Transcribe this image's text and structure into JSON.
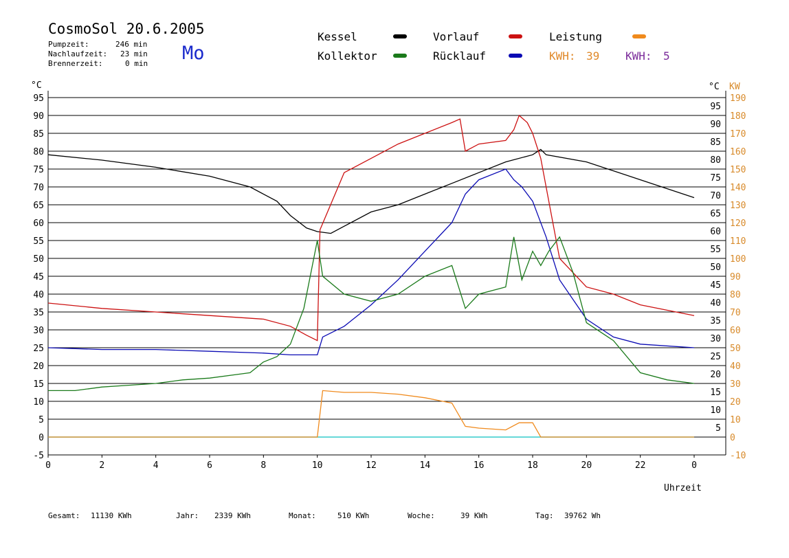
{
  "header": {
    "title": "CosmoSol 20.6.2005",
    "day": "Mo",
    "stats": [
      {
        "label": "Pumpzeit:",
        "value": "246 min"
      },
      {
        "label": "Nachlaufzeit:",
        "value": "23 min"
      },
      {
        "label": "Brennerzeit:",
        "value": "0 min"
      }
    ]
  },
  "legend": {
    "kessel": "Kessel",
    "kollektor": "Kollektor",
    "vorlauf": "Vorlauf",
    "ruecklauf": "Rücklauf",
    "leistung": "Leistung",
    "kwh_a_label": "KWH:",
    "kwh_a_value": "39",
    "kwh_b_label": "KWH:",
    "kwh_b_value": "5"
  },
  "colors": {
    "kessel": "#000000",
    "kollektor": "#1a7a1a",
    "vorlauf": "#cc1111",
    "ruecklauf": "#0a0ab4",
    "leistung": "#f08a1c",
    "kwh_b": "#7a2a9a",
    "baseline": "#33cccc",
    "right_axis": "#d88a2a",
    "day": "#1a2acc"
  },
  "footer": {
    "gesamt_label": "Gesamt:",
    "gesamt_value": "11130 KWh",
    "jahr_label": "Jahr:",
    "jahr_value": "2339 KWh",
    "monat_label": "Monat:",
    "monat_value": "510 KWh",
    "woche_label": "Woche:",
    "woche_value": "39 KWh",
    "tag_label": "Tag:",
    "tag_value": "39762 Wh"
  },
  "chart_data": {
    "type": "line",
    "xlabel": "Uhrzeit",
    "left_unit": "°C",
    "right_units": [
      "°C",
      "KW"
    ],
    "xlim": [
      0,
      24
    ],
    "ylim_left": [
      -5,
      95
    ],
    "ylim_right_kw": [
      -10,
      190
    ],
    "x_ticks": [
      "0",
      "2",
      "4",
      "6",
      "8",
      "10",
      "12",
      "14",
      "16",
      "18",
      "20",
      "22",
      "0"
    ],
    "y_ticks_left": [
      "95",
      "90",
      "85",
      "80",
      "75",
      "70",
      "65",
      "60",
      "55",
      "50",
      "45",
      "40",
      "35",
      "30",
      "25",
      "20",
      "15",
      "10",
      "5",
      "0",
      "-5"
    ],
    "y_ticks_right_c": [
      "95",
      "90",
      "85",
      "80",
      "75",
      "70",
      "65",
      "60",
      "55",
      "50",
      "45",
      "40",
      "35",
      "30",
      "25",
      "20",
      "15",
      "10",
      "5"
    ],
    "y_ticks_right_kw": [
      "190",
      "180",
      "170",
      "160",
      "150",
      "140",
      "130",
      "120",
      "110",
      "100",
      "90",
      "80",
      "70",
      "60",
      "50",
      "40",
      "30",
      "20",
      "10",
      "0",
      "-10"
    ],
    "series": [
      {
        "name": "Kessel",
        "x": [
          0,
          2,
          4,
          6,
          7.5,
          8,
          8.5,
          9,
          9.6,
          10,
          10.5,
          11,
          12,
          13,
          14,
          15,
          16,
          17,
          18,
          18.3,
          18.5,
          20,
          22,
          24
        ],
        "y": [
          79,
          77.5,
          75.5,
          73,
          70,
          68,
          66,
          62,
          58.5,
          57.5,
          57,
          59,
          63,
          65,
          68,
          71,
          74,
          77,
          79,
          80.5,
          79,
          77,
          72,
          67
        ]
      },
      {
        "name": "Vorlauf",
        "x": [
          0,
          2,
          4,
          6,
          8,
          9,
          9.6,
          10,
          10.1,
          11,
          12,
          13,
          14,
          15,
          15.3,
          15.5,
          16,
          17,
          17.3,
          17.5,
          17.8,
          18,
          18.3,
          18.6,
          19,
          20,
          21,
          22,
          24
        ],
        "y": [
          37.5,
          36,
          35,
          34,
          33,
          31,
          28.5,
          27,
          58,
          74,
          78,
          82,
          85,
          88,
          89,
          80,
          82,
          83,
          86,
          90,
          88,
          85,
          78,
          66,
          50,
          42,
          40,
          37,
          34
        ]
      },
      {
        "name": "Rücklauf",
        "x": [
          0,
          2,
          4,
          6,
          8,
          9,
          10,
          10.2,
          11,
          12,
          13,
          14,
          15,
          15.5,
          16,
          17,
          17.3,
          17.6,
          18,
          18.5,
          19,
          20,
          21,
          22,
          24
        ],
        "y": [
          25,
          24.5,
          24.5,
          24,
          23.5,
          23,
          23,
          28,
          31,
          37,
          44,
          52,
          60,
          68,
          72,
          75,
          72,
          70,
          66,
          56,
          44,
          33,
          28,
          26,
          25
        ]
      },
      {
        "name": "Kollektor",
        "x": [
          0,
          1,
          2,
          3,
          4,
          5,
          6,
          7,
          7.5,
          8,
          8.5,
          9,
          9.5,
          10,
          10.2,
          11,
          12,
          13,
          14,
          15,
          15.5,
          16,
          17,
          17.3,
          17.6,
          18,
          18.3,
          18.6,
          19,
          19.5,
          20,
          21,
          22,
          23,
          24
        ],
        "y": [
          13,
          13,
          14,
          14.5,
          15,
          16,
          16.5,
          17.5,
          18,
          21,
          22.5,
          26,
          36,
          55,
          45,
          40,
          38,
          40,
          45,
          48,
          36,
          40,
          42,
          56,
          44,
          52,
          48,
          52,
          56,
          46,
          32,
          27,
          18,
          16,
          15
        ]
      },
      {
        "name": "Leistung",
        "unit": "KW",
        "x": [
          0,
          10,
          10.2,
          11,
          12,
          13,
          14,
          15,
          15.5,
          16,
          17,
          17.5,
          18,
          18.3,
          24
        ],
        "y": [
          0,
          0,
          26,
          25,
          25,
          24,
          22,
          19,
          6,
          5,
          4,
          8,
          8,
          0,
          0
        ]
      }
    ]
  }
}
